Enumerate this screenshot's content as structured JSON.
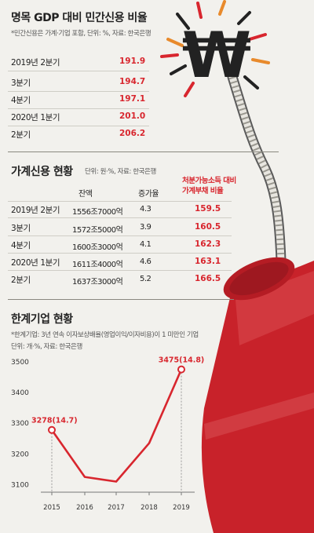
{
  "section1": {
    "title": "명목 GDP 대비 민간신용 비율",
    "note": "*민간신용은 가계·기업 포함, 단위: %, 자료: 한국은행",
    "rows": [
      {
        "label": "2019년 2분기",
        "value": "191.9"
      },
      {
        "label": "3분기",
        "value": "194.7"
      },
      {
        "label": "4분기",
        "value": "197.1"
      },
      {
        "label": "2020년 1분기",
        "value": "201.0"
      },
      {
        "label": "2분기",
        "value": "206.2"
      }
    ]
  },
  "section2": {
    "title": "가계신용 현황",
    "note": "단위: 원·%, 자료: 한국은행",
    "headers": {
      "amount": "잔액",
      "growth": "증가율",
      "ratio_line1": "처분가능소득 대비",
      "ratio_line2": "가계부채 비율"
    },
    "rows": [
      {
        "label": "2019년 2분기",
        "amount": "1556조7000억",
        "growth": "4.3",
        "ratio": "159.5"
      },
      {
        "label": "3분기",
        "amount": "1572조5000억",
        "growth": "3.9",
        "ratio": "160.5"
      },
      {
        "label": "4분기",
        "amount": "1600조3000억",
        "growth": "4.1",
        "ratio": "162.3"
      },
      {
        "label": "2020년 1분기",
        "amount": "1611조4000억",
        "growth": "4.6",
        "ratio": "163.1"
      },
      {
        "label": "2분기",
        "amount": "1637조3000억",
        "growth": "5.2",
        "ratio": "166.5"
      }
    ]
  },
  "section3": {
    "title": "한계기업 현황",
    "note1": "*한계기업: 3년 연속 이자보상배율(영업이익/이자비용)이 1 미만인 기업",
    "note2": "단위: 개·%, 자료: 한국은행"
  },
  "illustration": {
    "won_symbol": "₩"
  },
  "colors": {
    "accent": "#d8262e",
    "background": "#f2f1ed",
    "dynamite": "#c8222a"
  },
  "chart_data": {
    "type": "line",
    "x": [
      "2015",
      "2016",
      "2017",
      "2018",
      "2019"
    ],
    "values": [
      3278,
      3125,
      3110,
      3235,
      3475
    ],
    "annotations": [
      {
        "index": 0,
        "text": "3278(14.7)"
      },
      {
        "index": 4,
        "text": "3475(14.8)"
      }
    ],
    "yticks": [
      "3100",
      "3200",
      "3300",
      "3400",
      "3500"
    ],
    "ylim": [
      3050,
      3520
    ],
    "grid": false
  }
}
